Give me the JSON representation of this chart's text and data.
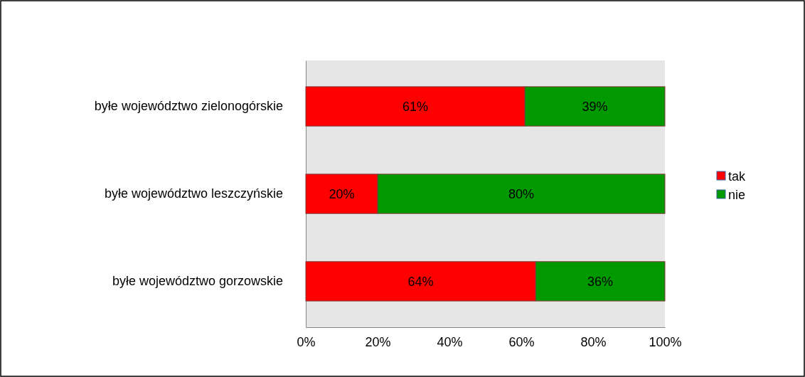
{
  "chart_data": {
    "type": "bar",
    "orientation": "horizontal",
    "stacked": true,
    "categories": [
      "byłe województwo zielonogórskie",
      "byłe województwo leszczyńskie",
      "byłe województwo gorzowskie"
    ],
    "series": [
      {
        "name": "tak",
        "color": "#ff0000",
        "values": [
          61,
          20,
          64
        ],
        "value_labels": [
          "61%",
          "20%",
          "64%"
        ]
      },
      {
        "name": "nie",
        "color": "#009900",
        "values": [
          39,
          80,
          36
        ],
        "value_labels": [
          "39%",
          "80%",
          "36%"
        ]
      }
    ],
    "xlim": [
      0,
      100
    ],
    "xticks": [
      {
        "value": 0,
        "label": "0%"
      },
      {
        "value": 20,
        "label": "20%"
      },
      {
        "value": 40,
        "label": "40%"
      },
      {
        "value": 60,
        "label": "60%"
      },
      {
        "value": 80,
        "label": "80%"
      },
      {
        "value": 100,
        "label": "100%"
      }
    ],
    "grid": false,
    "legend": "right"
  }
}
